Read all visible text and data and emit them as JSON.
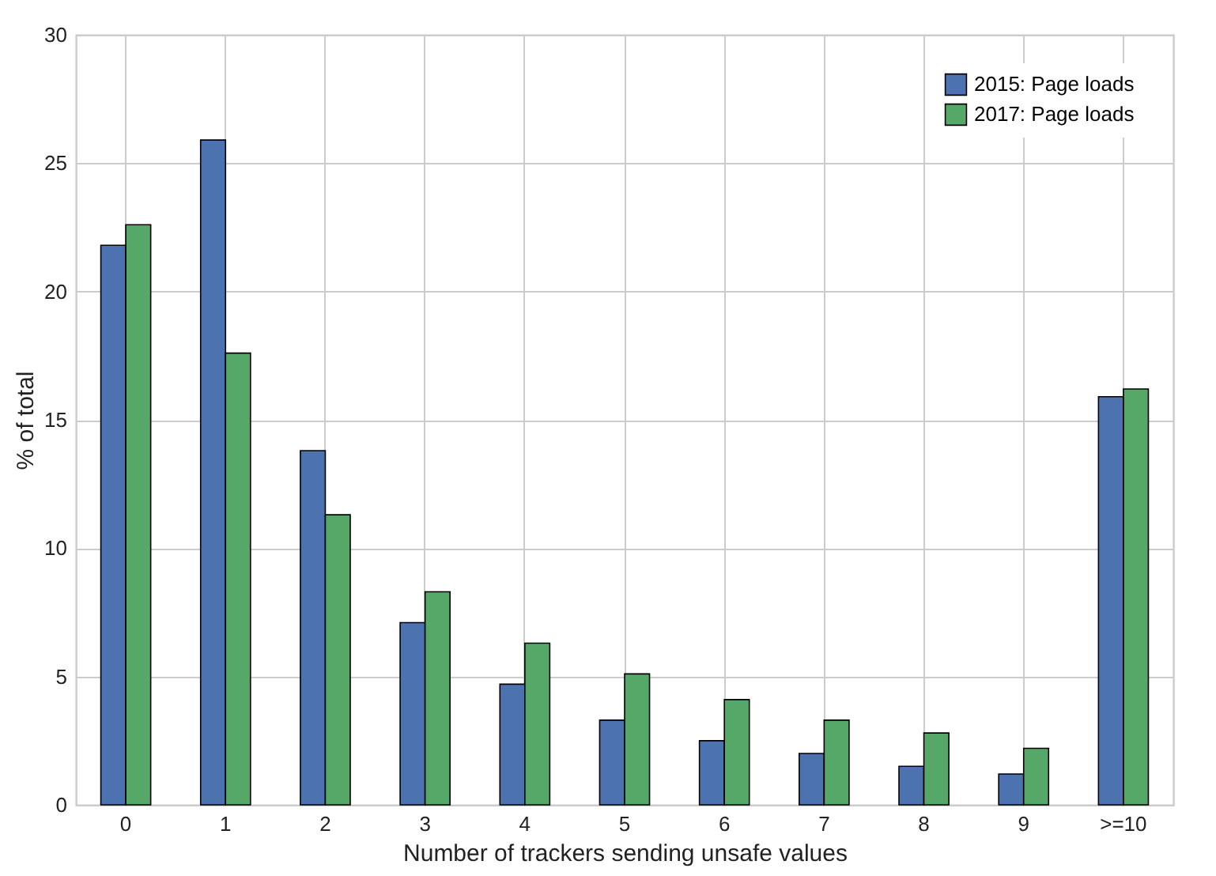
{
  "chart_data": {
    "type": "bar",
    "xlabel": "Number of trackers sending unsafe values",
    "ylabel": "% of total",
    "categories": [
      "0",
      "1",
      "2",
      "3",
      "4",
      "5",
      "6",
      "7",
      "8",
      "9",
      ">=10"
    ],
    "series": [
      {
        "name": "2015: Page loads",
        "color": "#4c72b0",
        "values": [
          21.8,
          25.9,
          13.8,
          7.1,
          4.7,
          3.3,
          2.5,
          2.0,
          1.5,
          1.2,
          15.9
        ]
      },
      {
        "name": "2017: Page loads",
        "color": "#55a868",
        "values": [
          22.6,
          17.6,
          11.3,
          8.3,
          6.3,
          5.1,
          4.1,
          3.3,
          2.8,
          2.2,
          16.2
        ]
      }
    ],
    "ylim": [
      0,
      30
    ],
    "yticks": [
      0,
      5,
      10,
      15,
      20,
      25,
      30
    ],
    "grid": true,
    "legend": "top right"
  }
}
